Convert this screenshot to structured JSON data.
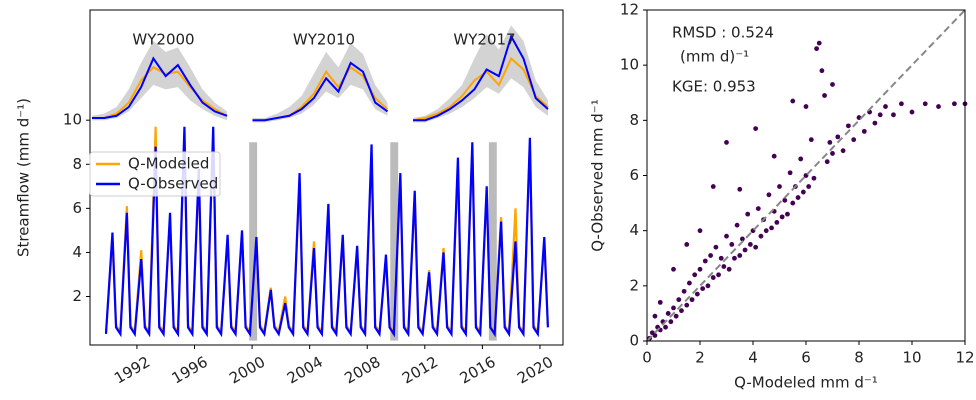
{
  "chart_data": [
    {
      "type": "line",
      "ylabel": "Streamflow (mm d⁻¹)",
      "xlim": [
        1988.74,
        2021.6
      ],
      "ylim": [
        -0.2,
        15
      ],
      "xticks": [
        1992,
        1996,
        2000,
        2004,
        2008,
        2012,
        2016,
        2020
      ],
      "yticks": [
        2,
        4,
        6,
        8,
        10
      ],
      "legend": "upper left",
      "x": [
        1989.85,
        1990.3,
        1990.55,
        1990.85,
        1991.3,
        1991.55,
        1991.85,
        1992.3,
        1992.55,
        1992.85,
        1993.3,
        1993.55,
        1993.85,
        1994.3,
        1994.55,
        1994.85,
        1995.3,
        1995.55,
        1995.85,
        1996.3,
        1996.55,
        1996.85,
        1997.3,
        1997.55,
        1997.85,
        1998.3,
        1998.55,
        1998.85,
        1999.3,
        1999.55,
        1999.85,
        2000.3,
        2000.55,
        2000.85,
        2001.3,
        2001.55,
        2001.85,
        2002.3,
        2002.55,
        2002.85,
        2003.3,
        2003.55,
        2003.85,
        2004.3,
        2004.55,
        2004.85,
        2005.3,
        2005.55,
        2005.85,
        2006.3,
        2006.55,
        2006.85,
        2007.3,
        2007.55,
        2007.85,
        2008.3,
        2008.55,
        2008.85,
        2009.3,
        2009.55,
        2009.85,
        2010.3,
        2010.55,
        2010.85,
        2011.3,
        2011.55,
        2011.85,
        2012.3,
        2012.55,
        2012.85,
        2013.3,
        2013.55,
        2013.85,
        2014.3,
        2014.55,
        2014.85,
        2015.3,
        2015.55,
        2015.85,
        2016.3,
        2016.55,
        2016.85,
        2017.3,
        2017.55,
        2017.85,
        2018.3,
        2018.55,
        2018.85,
        2019.3,
        2019.55,
        2019.85,
        2020.3,
        2020.55
      ],
      "series": [
        {
          "name": "Q-Modeled",
          "color": "#ffa500",
          "values": [
            0.4,
            4.5,
            0.7,
            0.4,
            6.1,
            0.7,
            0.4,
            4.1,
            0.7,
            0.4,
            9.7,
            0.7,
            0.4,
            5.5,
            0.7,
            0.4,
            9.3,
            0.7,
            0.4,
            7.5,
            0.7,
            0.4,
            9.4,
            0.7,
            0.4,
            4.6,
            0.7,
            0.4,
            4.8,
            0.7,
            0.4,
            4.5,
            0.7,
            0.4,
            2.4,
            0.7,
            0.4,
            2.0,
            0.7,
            0.4,
            7.2,
            0.7,
            0.4,
            4.5,
            0.7,
            0.4,
            5.9,
            0.7,
            0.4,
            4.6,
            0.7,
            0.4,
            4.1,
            0.7,
            0.4,
            8.5,
            0.7,
            0.4,
            3.7,
            0.7,
            0.4,
            7.3,
            0.7,
            0.4,
            6.5,
            0.7,
            0.4,
            3.2,
            0.7,
            0.4,
            4.2,
            0.7,
            0.4,
            7.9,
            0.7,
            0.4,
            8.7,
            0.7,
            0.4,
            6.7,
            0.7,
            0.4,
            5.6,
            0.7,
            0.4,
            6.0,
            0.7,
            0.4,
            8.9,
            0.7,
            0.4,
            4.5,
            0.7
          ]
        },
        {
          "name": "Q-Observed",
          "color": "#0000ff",
          "values": [
            0.3,
            4.9,
            0.6,
            0.3,
            5.8,
            0.6,
            0.3,
            3.7,
            0.6,
            0.3,
            8.8,
            0.6,
            0.3,
            5.8,
            0.6,
            0.3,
            9.7,
            0.6,
            0.3,
            7.8,
            0.6,
            0.3,
            9.7,
            0.6,
            0.3,
            4.8,
            0.6,
            0.3,
            5.0,
            0.6,
            0.3,
            4.7,
            0.6,
            0.3,
            2.3,
            0.6,
            0.3,
            1.7,
            0.6,
            0.3,
            7.6,
            0.6,
            0.3,
            4.2,
            0.6,
            0.3,
            6.2,
            0.6,
            0.3,
            4.8,
            0.6,
            0.3,
            4.3,
            0.6,
            0.3,
            8.9,
            0.6,
            0.3,
            3.9,
            0.6,
            0.3,
            7.6,
            0.6,
            0.3,
            6.8,
            0.6,
            0.3,
            3.1,
            0.6,
            0.3,
            4.0,
            0.6,
            0.3,
            8.3,
            0.6,
            0.3,
            9.0,
            0.6,
            0.3,
            7.0,
            0.6,
            0.3,
            5.4,
            0.6,
            0.3,
            4.5,
            0.6,
            0.3,
            9.2,
            0.6,
            0.3,
            4.7,
            0.6
          ]
        }
      ],
      "highlights": [
        {
          "x0": 1999.8,
          "x1": 2000.35,
          "y": 9
        },
        {
          "x0": 2009.6,
          "x1": 2010.15,
          "y": 9
        },
        {
          "x0": 2016.45,
          "x1": 2017.0,
          "y": 9
        }
      ],
      "highlight_color": "#bbbbbb",
      "insets": [
        {
          "label": "WY2000",
          "observed": [
            10.1,
            10.1,
            10.2,
            10.6,
            11.5,
            12.8,
            12.0,
            12.5,
            11.6,
            10.8,
            10.4,
            10.2
          ],
          "modeled": [
            10.1,
            10.1,
            10.3,
            10.8,
            11.8,
            12.4,
            12.1,
            12.2,
            11.5,
            10.9,
            10.5,
            10.2
          ],
          "band_low": [
            10.0,
            10.0,
            10.1,
            10.4,
            11.0,
            11.6,
            11.4,
            11.5,
            10.9,
            10.5,
            10.2,
            10.0
          ],
          "band_high": [
            10.2,
            10.3,
            10.6,
            11.4,
            12.6,
            13.6,
            13.1,
            13.3,
            12.4,
            11.4,
            10.8,
            10.4
          ]
        },
        {
          "label": "WY2010",
          "observed": [
            10.0,
            10.0,
            10.1,
            10.2,
            10.5,
            11.0,
            11.9,
            11.3,
            12.6,
            12.2,
            10.8,
            10.4
          ],
          "modeled": [
            10.0,
            10.0,
            10.1,
            10.2,
            10.6,
            11.2,
            12.2,
            11.5,
            12.4,
            12.0,
            11.0,
            10.5
          ],
          "band_low": [
            9.9,
            9.9,
            10.0,
            10.1,
            10.3,
            10.7,
            11.3,
            11.0,
            11.6,
            11.4,
            10.5,
            10.2
          ],
          "band_high": [
            10.1,
            10.1,
            10.3,
            10.6,
            11.1,
            12.1,
            13.1,
            12.4,
            13.5,
            13.0,
            11.6,
            10.8
          ]
        },
        {
          "label": "WY2017",
          "observed": [
            10.0,
            10.0,
            10.2,
            10.5,
            10.9,
            11.4,
            12.3,
            12.0,
            13.8,
            12.8,
            11.0,
            10.5
          ],
          "modeled": [
            10.0,
            10.1,
            10.3,
            10.6,
            11.1,
            11.8,
            12.2,
            11.6,
            12.8,
            12.3,
            11.1,
            10.6
          ],
          "band_low": [
            9.9,
            9.9,
            10.1,
            10.3,
            10.6,
            11.0,
            11.5,
            11.2,
            11.9,
            11.5,
            10.6,
            10.2
          ],
          "band_high": [
            10.1,
            10.2,
            10.5,
            11.0,
            11.6,
            12.8,
            13.9,
            13.2,
            14.3,
            13.6,
            11.8,
            10.9
          ]
        }
      ],
      "band_color": "#d3d3d3"
    },
    {
      "type": "scatter",
      "xlabel": "Q-Modeled mm d⁻¹",
      "ylabel": "Q-Observed mm d⁻¹",
      "annotations": [
        "RMSD : 0.524",
        "(mm d)⁻¹",
        "KGE: 0.953"
      ],
      "xlim": [
        0,
        12
      ],
      "ylim": [
        0,
        12
      ],
      "xticks": [
        0,
        2,
        4,
        6,
        8,
        10,
        12
      ],
      "yticks": [
        0,
        2,
        4,
        6,
        8,
        10,
        12
      ],
      "identity_line": true,
      "color": "#440154",
      "x": [
        0.2,
        0.3,
        0.4,
        0.5,
        0.6,
        0.7,
        0.8,
        0.9,
        1.0,
        1.1,
        1.2,
        1.3,
        1.4,
        1.5,
        1.6,
        1.7,
        1.8,
        1.9,
        2.0,
        2.1,
        2.2,
        2.3,
        2.4,
        2.5,
        2.6,
        2.7,
        2.8,
        2.9,
        3.0,
        3.1,
        3.2,
        3.3,
        3.4,
        3.5,
        3.6,
        3.7,
        3.8,
        3.9,
        4.0,
        4.1,
        4.2,
        4.3,
        4.4,
        4.5,
        4.6,
        4.7,
        4.8,
        4.9,
        5.0,
        5.1,
        5.2,
        5.3,
        5.4,
        5.5,
        5.6,
        5.7,
        5.8,
        5.9,
        6.0,
        6.1,
        6.2,
        6.3,
        6.4,
        6.5,
        6.6,
        6.7,
        6.8,
        6.9,
        7.0,
        7.2,
        7.4,
        7.6,
        7.8,
        8.0,
        8.2,
        8.4,
        8.6,
        8.8,
        9.0,
        9.3,
        9.6,
        10.0,
        10.5,
        11.0,
        11.6,
        12.0,
        3.0,
        4.1,
        2.5,
        1.0,
        0.5,
        1.5,
        5.5,
        7.0,
        6.0,
        3.5,
        2.0,
        4.8,
        0.1,
        0.3
      ],
      "y": [
        0.3,
        0.2,
        0.5,
        0.4,
        0.7,
        0.5,
        1.0,
        0.7,
        1.2,
        0.9,
        1.5,
        1.1,
        1.8,
        1.3,
        2.1,
        1.5,
        2.4,
        1.7,
        2.6,
        1.9,
        2.9,
        2.0,
        3.1,
        2.3,
        3.4,
        2.4,
        3.0,
        2.7,
        3.8,
        2.6,
        3.5,
        3.0,
        4.2,
        3.1,
        3.7,
        3.3,
        4.6,
        3.5,
        4.0,
        3.4,
        4.8,
        3.8,
        4.4,
        4.0,
        5.3,
        4.1,
        4.7,
        4.3,
        5.6,
        4.5,
        5.1,
        4.6,
        6.1,
        5.0,
        5.6,
        5.2,
        6.6,
        5.4,
        6.0,
        5.6,
        7.3,
        5.9,
        10.6,
        10.8,
        9.8,
        8.9,
        6.5,
        7.2,
        6.8,
        7.4,
        6.9,
        7.8,
        7.3,
        8.1,
        7.6,
        8.3,
        7.9,
        8.2,
        8.5,
        8.2,
        8.6,
        8.3,
        8.6,
        8.5,
        8.6,
        8.6,
        7.2,
        7.7,
        5.6,
        2.6,
        1.4,
        3.5,
        8.7,
        9.3,
        8.5,
        5.5,
        4.0,
        6.7,
        0.1,
        0.9
      ]
    }
  ]
}
